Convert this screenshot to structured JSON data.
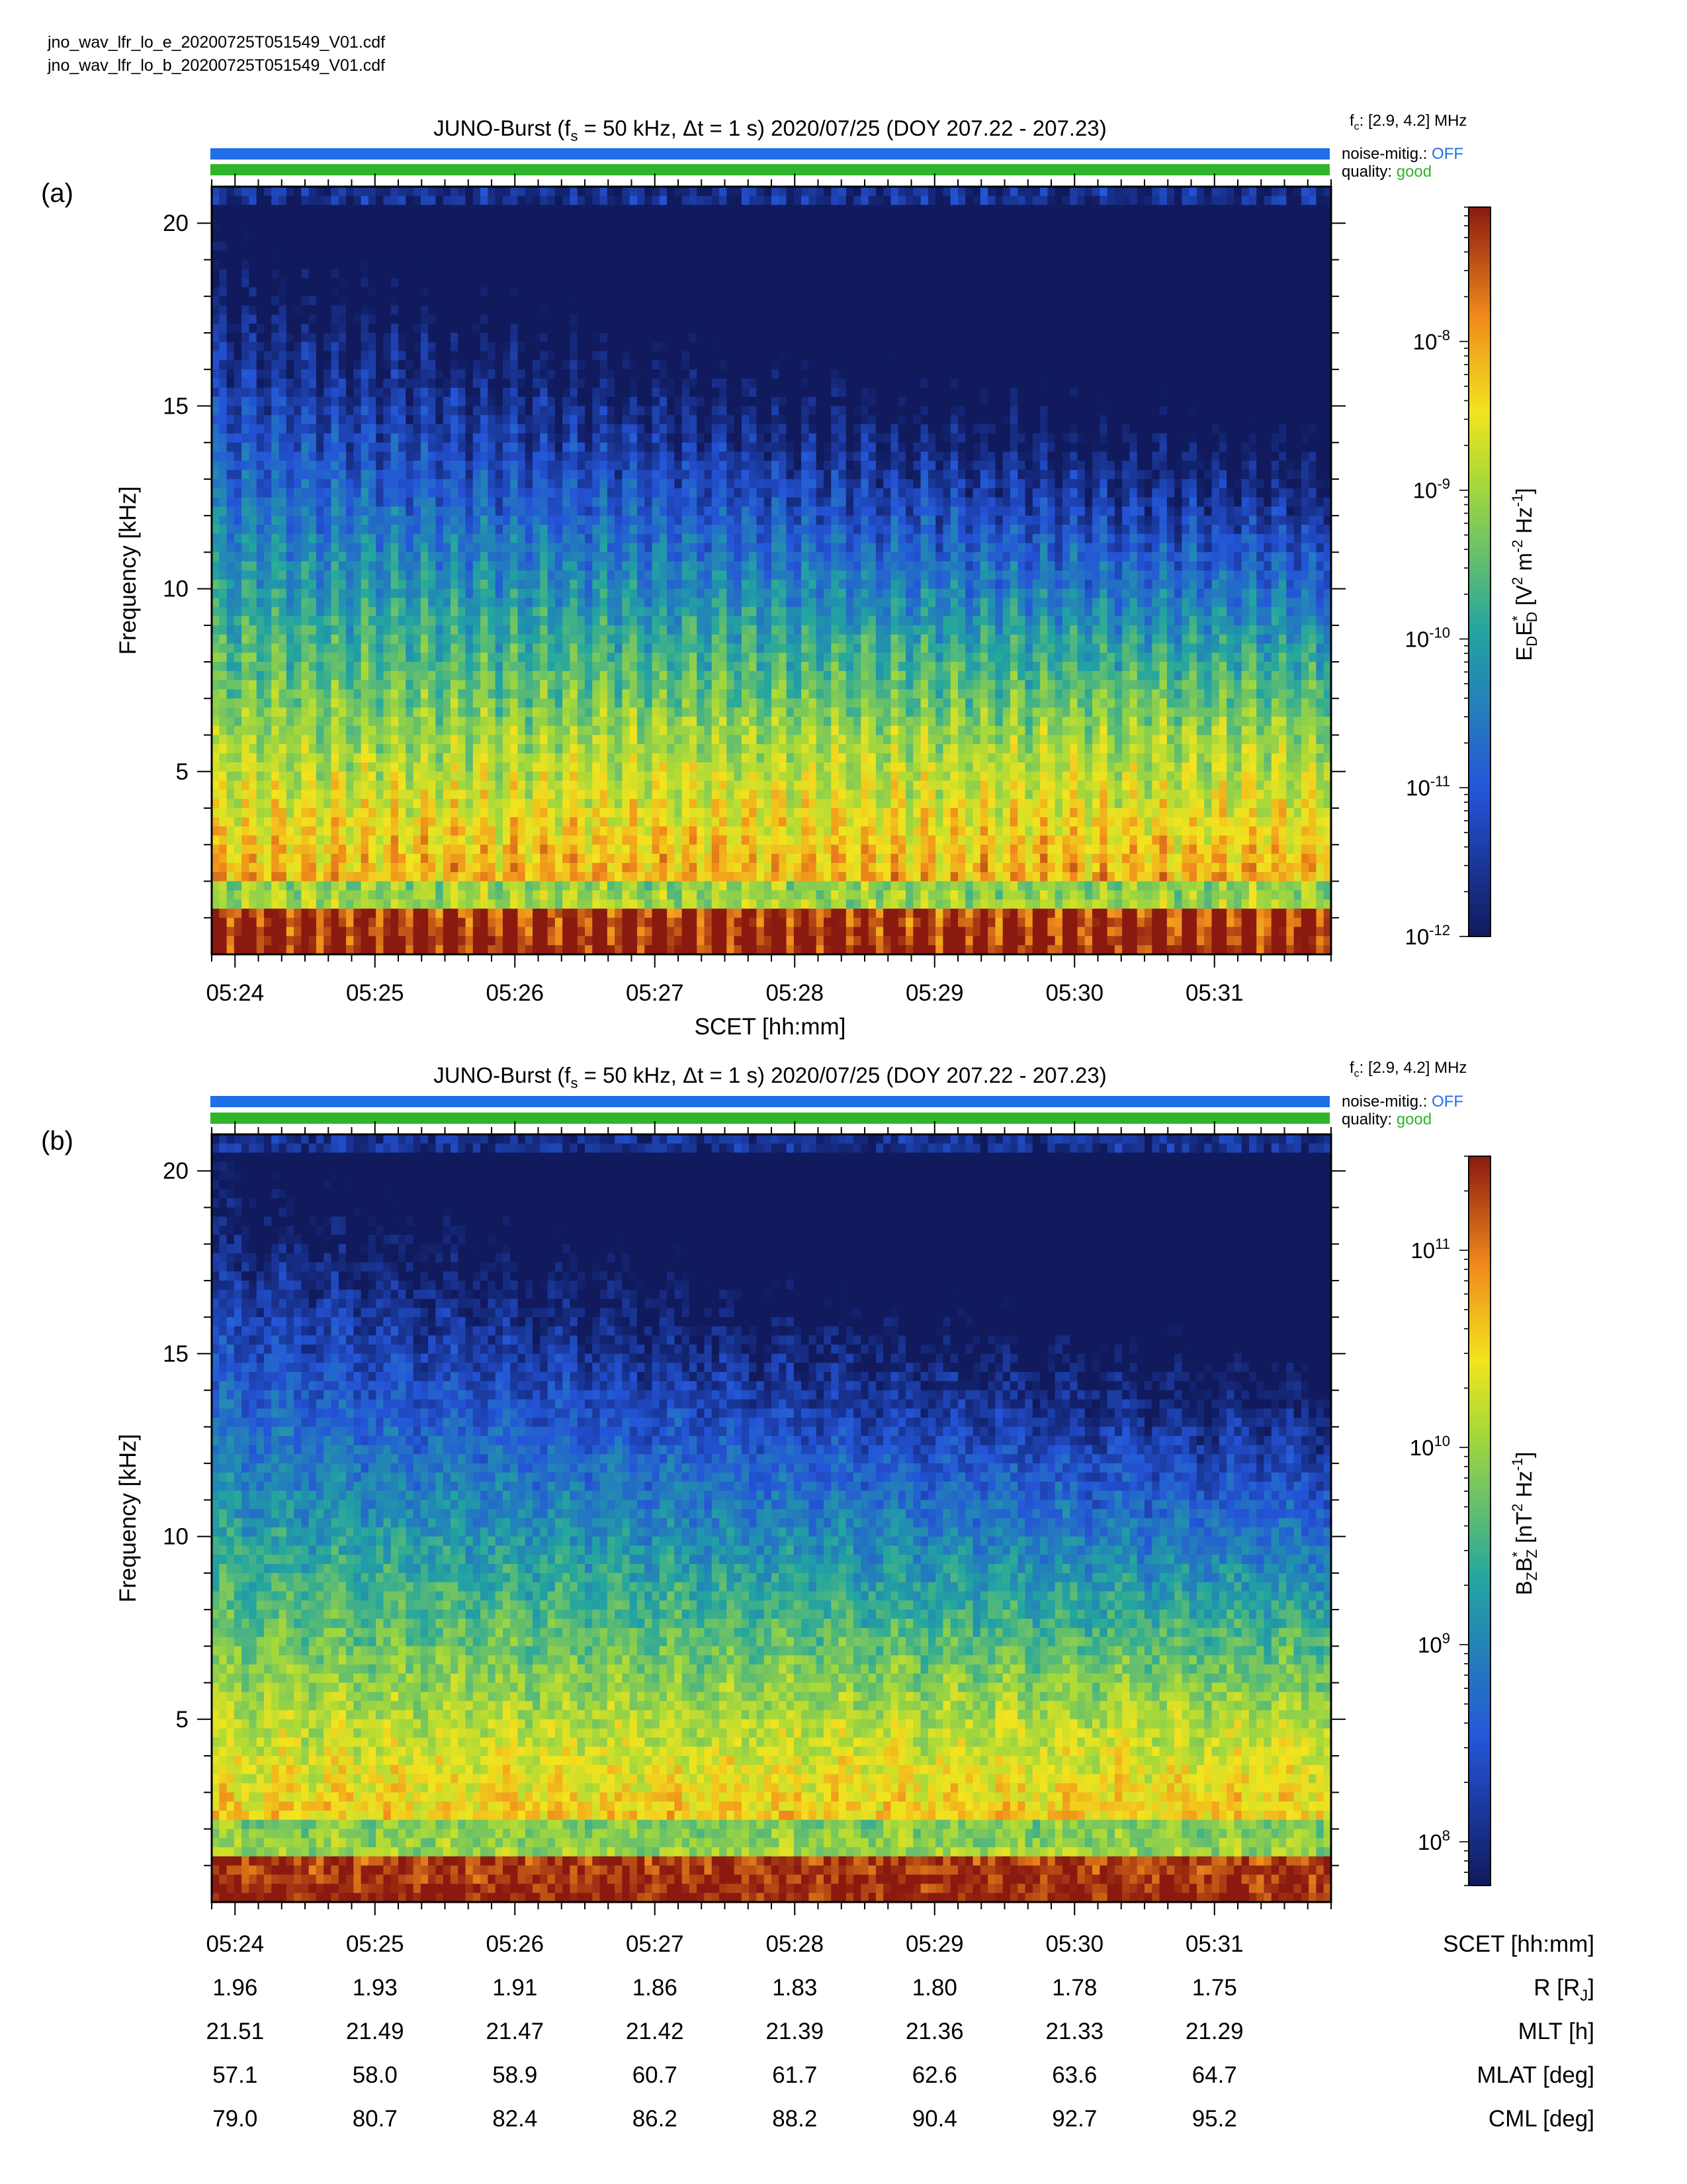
{
  "files": [
    "jno_wav_lfr_lo_e_20200725T051549_V01.cdf",
    "jno_wav_lfr_lo_b_20200725T051549_V01.cdf"
  ],
  "colors": {
    "noise_bar": "#1f6fe8",
    "quality_bar": "#2fb52a",
    "off_text": "#1f6fe8",
    "good_text": "#2fb52a"
  },
  "panels": [
    {
      "label": "(a)",
      "title_prefix": "JUNO-Burst (f",
      "title_sub": "s",
      "title_suffix": " = 50 kHz, Δt = 1 s)  2020/07/25 (DOY 207.22 - 207.23)",
      "fc_prefix": "f",
      "fc_sub": "c",
      "fc_suffix": ": [2.9, 4.2] MHz",
      "noise_label": "noise-mitig.:",
      "noise_value": "OFF",
      "quality_label": "quality:",
      "quality_value": "good",
      "ylabel": "Frequency [kHz]",
      "xlabel": "SCET [hh:mm]",
      "colorbar_label": "E_D E*_D [V² m⁻² Hz⁻¹]",
      "colorbar_ticks": [
        {
          "base": "10",
          "exp": "-8"
        },
        {
          "base": "10",
          "exp": "-9"
        },
        {
          "base": "10",
          "exp": "-10"
        },
        {
          "base": "10",
          "exp": "-11"
        },
        {
          "base": "10",
          "exp": "-12"
        }
      ]
    },
    {
      "label": "(b)",
      "title_prefix": "JUNO-Burst (f",
      "title_sub": "s",
      "title_suffix": " = 50 kHz, Δt = 1 s)  2020/07/25 (DOY 207.22 - 207.23)",
      "fc_prefix": "f",
      "fc_sub": "c",
      "fc_suffix": ": [2.9, 4.2] MHz",
      "noise_label": "noise-mitig.:",
      "noise_value": "OFF",
      "quality_label": "quality:",
      "quality_value": "good",
      "ylabel": "Frequency [kHz]",
      "colorbar_label": "B_Z B*_Z [nT² Hz⁻¹]",
      "colorbar_ticks": [
        {
          "base": "10",
          "exp": "11"
        },
        {
          "base": "10",
          "exp": "10"
        },
        {
          "base": "10",
          "exp": "9"
        },
        {
          "base": "10",
          "exp": "8"
        }
      ]
    }
  ],
  "ephemeris": {
    "rows": [
      {
        "label": "SCET [hh:mm]",
        "values": [
          "05:24",
          "05:25",
          "05:26",
          "05:27",
          "05:28",
          "05:29",
          "05:30",
          "05:31"
        ]
      },
      {
        "label": "R [R_J]",
        "values": [
          "1.96",
          "1.93",
          "1.91",
          "1.86",
          "1.83",
          "1.80",
          "1.78",
          "1.75"
        ]
      },
      {
        "label": "MLT [h]",
        "values": [
          "21.51",
          "21.49",
          "21.47",
          "21.42",
          "21.39",
          "21.36",
          "21.33",
          "21.29"
        ]
      },
      {
        "label": "MLAT [deg]",
        "values": [
          "57.1",
          "58.0",
          "58.9",
          "60.7",
          "61.7",
          "62.6",
          "63.6",
          "64.7"
        ]
      },
      {
        "label": "CML [deg]",
        "values": [
          "79.0",
          "80.7",
          "82.4",
          "86.2",
          "88.2",
          "90.4",
          "92.7",
          "95.2"
        ]
      }
    ]
  },
  "chart_data": [
    {
      "type": "heatmap",
      "panel": "(a)",
      "quantity": "E_D E*_D",
      "units": "V² m⁻² Hz⁻¹",
      "ylabel": "Frequency [kHz]",
      "xlabel": "SCET [hh:mm]",
      "ylim": [
        0,
        21
      ],
      "xlim": [
        "05:23:50",
        "05:31:50"
      ],
      "yticks": [
        5,
        10,
        15,
        20
      ],
      "xticks": [
        "05:24",
        "05:25",
        "05:26",
        "05:27",
        "05:28",
        "05:29",
        "05:30",
        "05:31"
      ],
      "colorscale": "log",
      "clim": [
        1e-12,
        8e-08
      ],
      "cticks": [
        1e-12,
        1e-11,
        1e-10,
        1e-09,
        1e-08
      ]
    },
    {
      "type": "heatmap",
      "panel": "(b)",
      "quantity": "B_Z B*_Z",
      "units": "nT² Hz⁻¹",
      "ylabel": "Frequency [kHz]",
      "ylim": [
        0,
        21
      ],
      "xlim": [
        "05:23:50",
        "05:31:50"
      ],
      "yticks": [
        5,
        10,
        15,
        20
      ],
      "xticks": [
        "05:24",
        "05:25",
        "05:26",
        "05:27",
        "05:28",
        "05:29",
        "05:30",
        "05:31"
      ],
      "colorscale": "log",
      "clim": [
        60000000.0,
        300000000000.0
      ],
      "cticks": [
        100000000.0,
        1000000000.0,
        10000000000.0,
        100000000000.0
      ]
    }
  ]
}
